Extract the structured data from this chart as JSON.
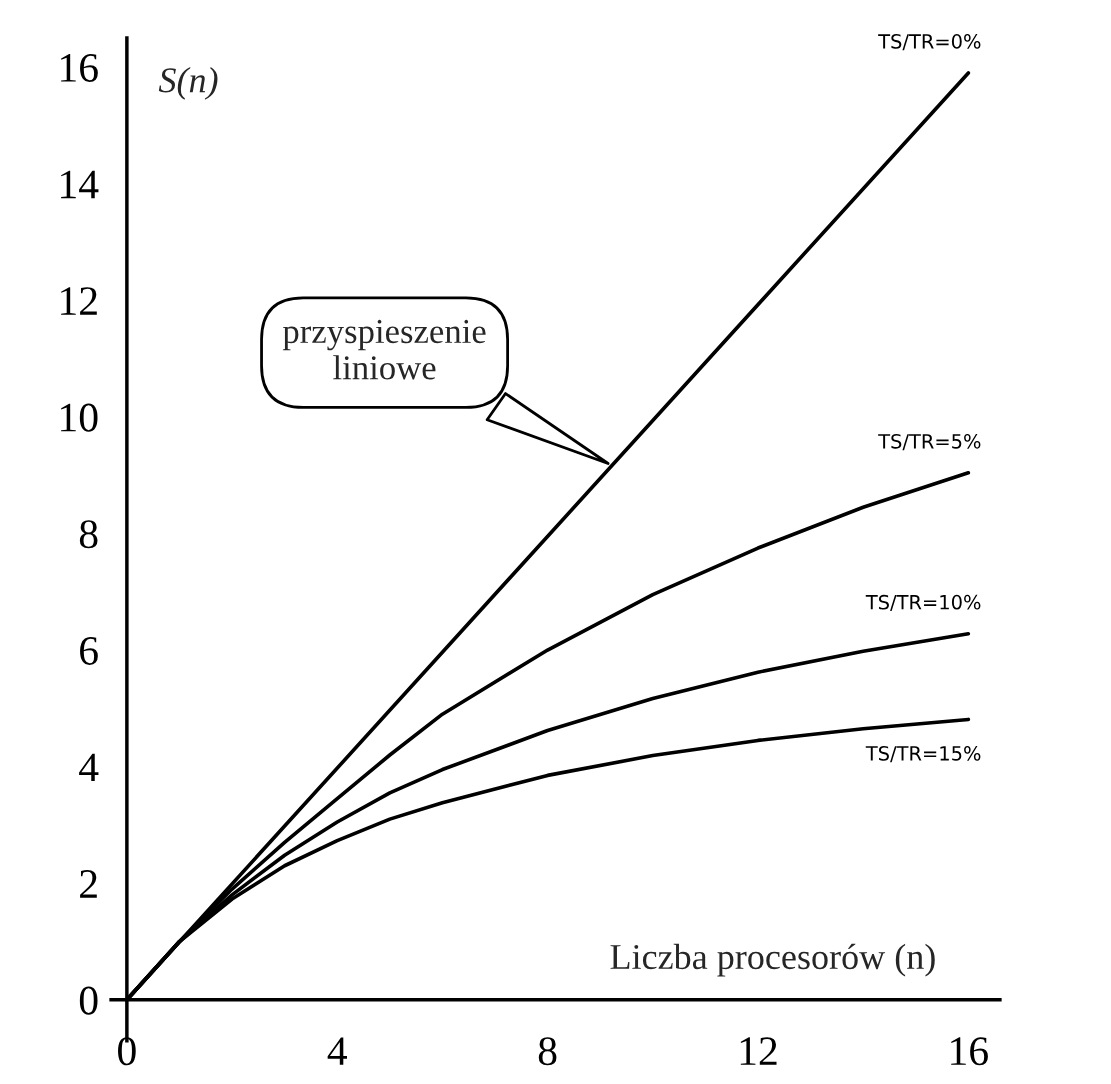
{
  "chart_data": {
    "type": "line",
    "xlabel": "Liczba procesorów (n)",
    "ylabel": "S(n)",
    "x": [
      0,
      1,
      2,
      3,
      4,
      5,
      6,
      8,
      10,
      12,
      14,
      16
    ],
    "series": [
      {
        "name": "TS/TR=0%",
        "color": "#000000",
        "x": [
          0,
          16
        ],
        "values": [
          0,
          15.9
        ]
      },
      {
        "name": "TS/TR=5%",
        "color": "#000000",
        "values": [
          0,
          1,
          1.9,
          2.7,
          3.45,
          4.2,
          4.9,
          6.0,
          6.95,
          7.75,
          8.45,
          9.04
        ]
      },
      {
        "name": "TS/TR=10%",
        "color": "#000000",
        "values": [
          0,
          1,
          1.8,
          2.48,
          3.05,
          3.55,
          3.95,
          4.62,
          5.17,
          5.62,
          5.98,
          6.28
        ]
      },
      {
        "name": "TS/TR=15%",
        "color": "#000000",
        "values": [
          0,
          1,
          1.73,
          2.3,
          2.73,
          3.1,
          3.38,
          3.85,
          4.19,
          4.45,
          4.65,
          4.81
        ]
      }
    ],
    "annotations": [
      "przyspieszenie\nliniowe"
    ],
    "xlim": [
      -0.3,
      16.6
    ],
    "ylim": [
      -0.7,
      16.5
    ],
    "xticks": [
      0,
      4,
      8,
      12,
      16
    ],
    "yticks": [
      0,
      2,
      4,
      6,
      8,
      10,
      12,
      14,
      16
    ],
    "grid": false,
    "legend": false,
    "line_style": "solid",
    "marker": "none"
  }
}
